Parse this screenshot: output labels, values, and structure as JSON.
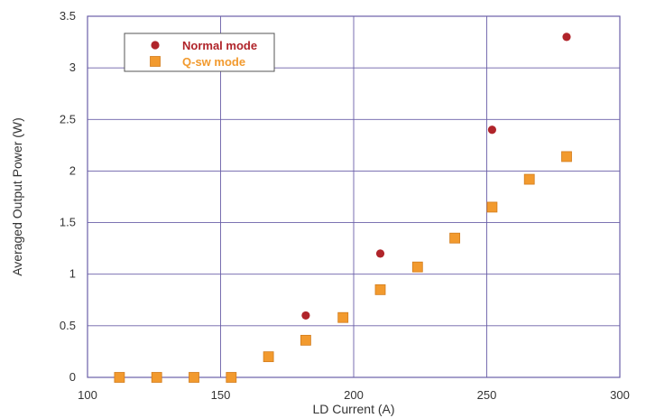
{
  "chart_data": {
    "type": "scatter",
    "xlabel": "LD Current (A)",
    "ylabel": "Averaged Output Power (W)",
    "xlim": [
      100,
      300
    ],
    "ylim": [
      0,
      3.5
    ],
    "xticks": [
      100,
      150,
      200,
      250,
      300
    ],
    "yticks": [
      0,
      0.5,
      1,
      1.5,
      2,
      2.5,
      3,
      3.5
    ],
    "grid": true,
    "legend_position": "top-left",
    "series": [
      {
        "name": "Normal mode",
        "marker": "circle",
        "color": "#b0242a",
        "x": [
          182,
          210,
          252,
          280
        ],
        "y": [
          0.6,
          1.2,
          2.4,
          3.3
        ]
      },
      {
        "name": "Q-sw mode",
        "marker": "square",
        "color": "#f29a2e",
        "x": [
          112,
          126,
          140,
          154,
          168,
          182,
          196,
          210,
          224,
          238,
          252,
          266,
          280
        ],
        "y": [
          0,
          0,
          0,
          0,
          0.2,
          0.36,
          0.58,
          0.85,
          1.07,
          1.35,
          1.65,
          1.92,
          2.14
        ]
      }
    ]
  }
}
